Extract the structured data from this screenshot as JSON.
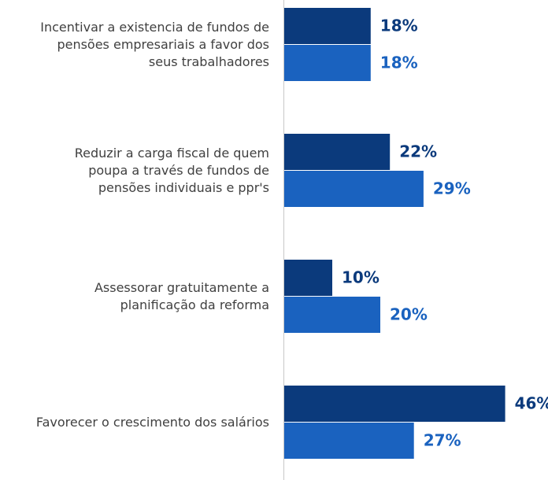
{
  "chart_data": {
    "type": "bar",
    "orientation": "horizontal",
    "categories": [
      "Incentivar a existencia de fundos de\npensões empresariais a favor dos\nseus trabalhadores",
      "Reduzir a carga fiscal de quem\npoupa a través de  fundos de\npensões individuais e ppr's",
      "Assessorar gratuitamente a\nplanificação da reforma",
      "Favorecer o crescimento dos salários"
    ],
    "series": [
      {
        "color": "#0b3a7c",
        "values": [
          18,
          22,
          10,
          46
        ],
        "value_labels": [
          "18%",
          "22%",
          "10%",
          "46%"
        ]
      },
      {
        "color": "#1a62bf",
        "values": [
          18,
          29,
          20,
          27
        ],
        "value_labels": [
          "18%",
          "29%",
          "20%",
          "27%"
        ]
      }
    ]
  }
}
